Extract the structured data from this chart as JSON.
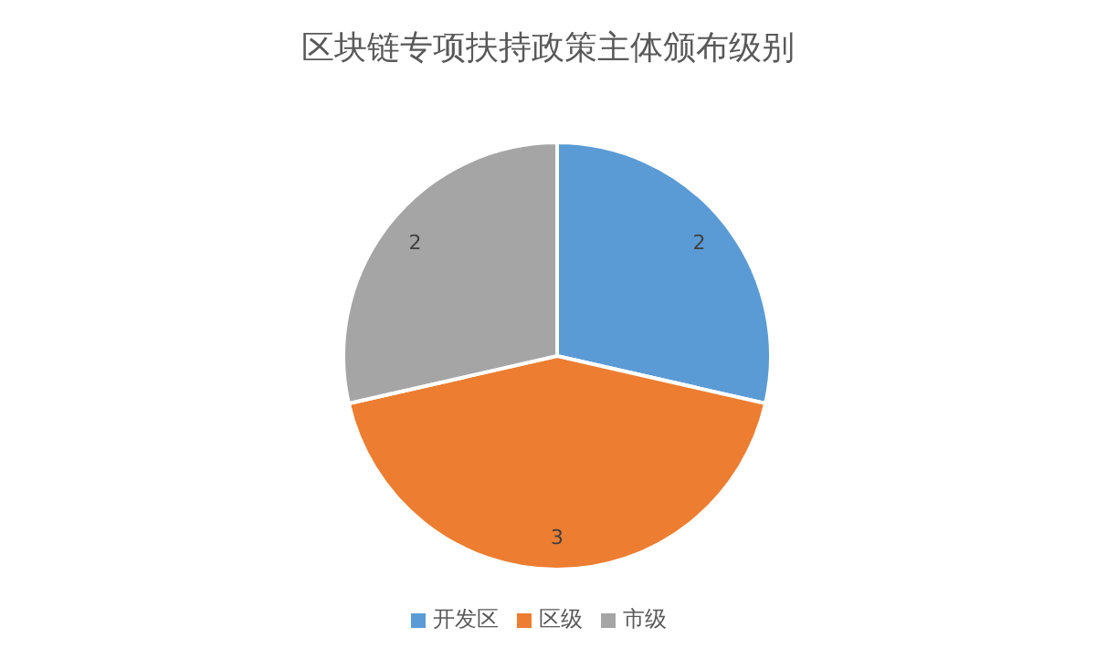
{
  "chart_data": {
    "type": "pie",
    "title": "区块链专项扶持政策主体颁布级别",
    "categories": [
      "开发区",
      "区级",
      "市级"
    ],
    "values": [
      2,
      3,
      2
    ],
    "colors": [
      "#5b9bd5",
      "#ed7d31",
      "#a5a5a5"
    ],
    "data_labels": true,
    "legend": "bottom"
  }
}
